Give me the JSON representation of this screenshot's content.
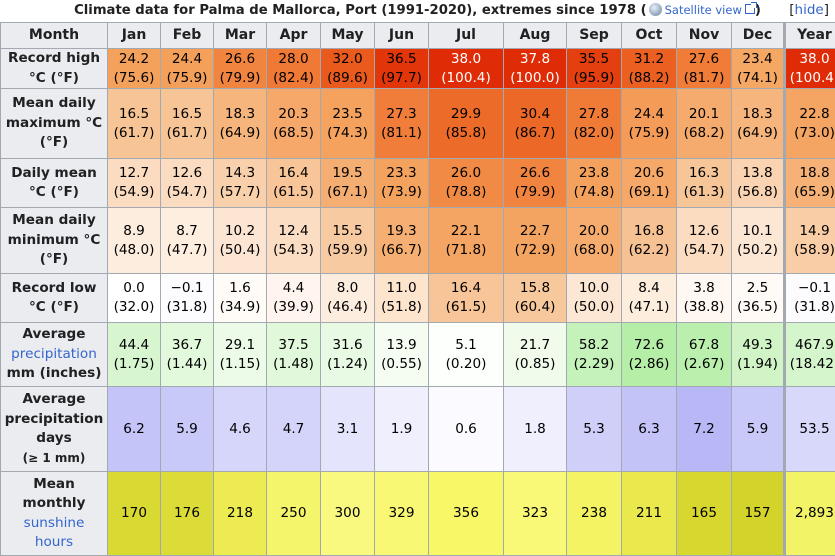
{
  "caption": {
    "text": "Climate data for Palma de Mallorca, Port (1991-2020), extremes since 1978",
    "satellite_link": "Satellite view",
    "hide_link": "hide"
  },
  "header": [
    "Month",
    "Jan",
    "Feb",
    "Mar",
    "Apr",
    "May",
    "Jun",
    "Jul",
    "Aug",
    "Sep",
    "Oct",
    "Nov",
    "Dec",
    "Year"
  ],
  "rows": [
    {
      "label": [
        "Record high",
        "°C (°F)"
      ],
      "cells": [
        {
          "a": "24.2",
          "b": "(75.6)",
          "bg": "#f4a15c",
          "fg": "#000000"
        },
        {
          "a": "24.4",
          "b": "(75.9)",
          "bg": "#f4a05b",
          "fg": "#000000"
        },
        {
          "a": "26.6",
          "b": "(79.9)",
          "bg": "#f1843f",
          "fg": "#000000"
        },
        {
          "a": "28.0",
          "b": "(82.4)",
          "bg": "#ef7935",
          "fg": "#000000"
        },
        {
          "a": "32.0",
          "b": "(89.6)",
          "bg": "#ea5a1c",
          "fg": "#000000"
        },
        {
          "a": "36.5",
          "b": "(97.7)",
          "bg": "#e2360a",
          "fg": "#000000"
        },
        {
          "a": "38.0",
          "b": "(100.4)",
          "bg": "#df2b06",
          "fg": "#ffffff"
        },
        {
          "a": "37.8",
          "b": "(100.0)",
          "bg": "#df2c06",
          "fg": "#ffffff"
        },
        {
          "a": "35.5",
          "b": "(95.9)",
          "bg": "#e43f0e",
          "fg": "#000000"
        },
        {
          "a": "31.2",
          "b": "(88.2)",
          "bg": "#eb6020",
          "fg": "#000000"
        },
        {
          "a": "27.6",
          "b": "(81.7)",
          "bg": "#f07c38",
          "fg": "#000000"
        },
        {
          "a": "23.4",
          "b": "(74.1)",
          "bg": "#f4a864",
          "fg": "#000000"
        },
        {
          "a": "38.0",
          "b": "(100.4)",
          "bg": "#df2b06",
          "fg": "#ffffff"
        }
      ]
    },
    {
      "label": [
        "Mean daily",
        "maximum °C",
        "(°F)"
      ],
      "cells": [
        {
          "a": "16.5",
          "b": "(61.7)",
          "bg": "#f7c496",
          "fg": "#000000"
        },
        {
          "a": "16.5",
          "b": "(61.7)",
          "bg": "#f7c496",
          "fg": "#000000"
        },
        {
          "a": "18.3",
          "b": "(64.9)",
          "bg": "#f6b57c",
          "fg": "#000000"
        },
        {
          "a": "20.3",
          "b": "(68.5)",
          "bg": "#f5a86a",
          "fg": "#000000"
        },
        {
          "a": "23.5",
          "b": "(74.3)",
          "bg": "#f4a25e",
          "fg": "#000000"
        },
        {
          "a": "27.3",
          "b": "(81.1)",
          "bg": "#f07e3a",
          "fg": "#000000"
        },
        {
          "a": "29.9",
          "b": "(85.8)",
          "bg": "#ed6b28",
          "fg": "#000000"
        },
        {
          "a": "30.4",
          "b": "(86.7)",
          "bg": "#ec6826",
          "fg": "#000000"
        },
        {
          "a": "27.8",
          "b": "(82.0)",
          "bg": "#ef7b37",
          "fg": "#000000"
        },
        {
          "a": "24.4",
          "b": "(75.9)",
          "bg": "#f39b57",
          "fg": "#000000"
        },
        {
          "a": "20.1",
          "b": "(68.2)",
          "bg": "#f5ab6d",
          "fg": "#000000"
        },
        {
          "a": "18.3",
          "b": "(64.9)",
          "bg": "#f6b57c",
          "fg": "#000000"
        },
        {
          "a": "22.8",
          "b": "(73.0)",
          "bg": "#f4a563",
          "fg": "#000000"
        }
      ]
    },
    {
      "label": [
        "Daily mean",
        "°C (°F)"
      ],
      "cells": [
        {
          "a": "12.7",
          "b": "(54.9)",
          "bg": "#fbdcc0",
          "fg": "#000000"
        },
        {
          "a": "12.6",
          "b": "(54.7)",
          "bg": "#fbdcc1",
          "fg": "#000000"
        },
        {
          "a": "14.3",
          "b": "(57.7)",
          "bg": "#f9d0ac",
          "fg": "#000000"
        },
        {
          "a": "16.4",
          "b": "(61.5)",
          "bg": "#f7c597",
          "fg": "#000000"
        },
        {
          "a": "19.5",
          "b": "(67.1)",
          "bg": "#f5ae71",
          "fg": "#000000"
        },
        {
          "a": "23.3",
          "b": "(73.9)",
          "bg": "#f4a35f",
          "fg": "#000000"
        },
        {
          "a": "26.0",
          "b": "(78.8)",
          "bg": "#f18a44",
          "fg": "#000000"
        },
        {
          "a": "26.6",
          "b": "(79.9)",
          "bg": "#f1843f",
          "fg": "#000000"
        },
        {
          "a": "23.8",
          "b": "(74.8)",
          "bg": "#f4a15d",
          "fg": "#000000"
        },
        {
          "a": "20.6",
          "b": "(69.1)",
          "bg": "#f5a868",
          "fg": "#000000"
        },
        {
          "a": "16.3",
          "b": "(61.3)",
          "bg": "#f7c698",
          "fg": "#000000"
        },
        {
          "a": "13.8",
          "b": "(56.8)",
          "bg": "#fad3b2",
          "fg": "#000000"
        },
        {
          "a": "18.8",
          "b": "(65.9)",
          "bg": "#f6b276",
          "fg": "#000000"
        }
      ]
    },
    {
      "label": [
        "Mean daily",
        "minimum °C",
        "(°F)"
      ],
      "cells": [
        {
          "a": "8.9",
          "b": "(48.0)",
          "bg": "#fdeddf",
          "fg": "#000000"
        },
        {
          "a": "8.7",
          "b": "(47.7)",
          "bg": "#fdeee0",
          "fg": "#000000"
        },
        {
          "a": "10.2",
          "b": "(50.4)",
          "bg": "#fce6d3",
          "fg": "#000000"
        },
        {
          "a": "12.4",
          "b": "(54.3)",
          "bg": "#fbddc3",
          "fg": "#000000"
        },
        {
          "a": "15.5",
          "b": "(59.9)",
          "bg": "#f8caa1",
          "fg": "#000000"
        },
        {
          "a": "19.3",
          "b": "(66.7)",
          "bg": "#f6af73",
          "fg": "#000000"
        },
        {
          "a": "22.1",
          "b": "(71.8)",
          "bg": "#f4a463",
          "fg": "#000000"
        },
        {
          "a": "22.7",
          "b": "(72.9)",
          "bg": "#f4a461",
          "fg": "#000000"
        },
        {
          "a": "20.0",
          "b": "(68.0)",
          "bg": "#f5ac6e",
          "fg": "#000000"
        },
        {
          "a": "16.8",
          "b": "(62.2)",
          "bg": "#f7c293",
          "fg": "#000000"
        },
        {
          "a": "12.6",
          "b": "(54.7)",
          "bg": "#fbdcc1",
          "fg": "#000000"
        },
        {
          "a": "10.1",
          "b": "(50.2)",
          "bg": "#fce6d4",
          "fg": "#000000"
        },
        {
          "a": "14.9",
          "b": "(58.9)",
          "bg": "#f9cda6",
          "fg": "#000000"
        }
      ]
    },
    {
      "label": [
        "Record low",
        "°C (°F)"
      ],
      "cells": [
        {
          "a": "0.0",
          "b": "(32.0)",
          "bg": "#ffffff",
          "fg": "#000000"
        },
        {
          "a": "−0.1",
          "b": "(31.8)",
          "bg": "#fcfcff",
          "fg": "#000000"
        },
        {
          "a": "1.6",
          "b": "(34.9)",
          "bg": "#fffcf8",
          "fg": "#000000"
        },
        {
          "a": "4.4",
          "b": "(39.9)",
          "bg": "#fff5ee",
          "fg": "#000000"
        },
        {
          "a": "8.0",
          "b": "(46.4)",
          "bg": "#fdeddf",
          "fg": "#000000"
        },
        {
          "a": "11.0",
          "b": "(51.8)",
          "bg": "#fce4cd",
          "fg": "#000000"
        },
        {
          "a": "16.4",
          "b": "(61.5)",
          "bg": "#f7c597",
          "fg": "#000000"
        },
        {
          "a": "15.8",
          "b": "(60.4)",
          "bg": "#f8c89d",
          "fg": "#000000"
        },
        {
          "a": "10.0",
          "b": "(50.0)",
          "bg": "#fce7d4",
          "fg": "#000000"
        },
        {
          "a": "8.4",
          "b": "(47.1)",
          "bg": "#fdeddd",
          "fg": "#000000"
        },
        {
          "a": "3.8",
          "b": "(38.8)",
          "bg": "#fff7f1",
          "fg": "#000000"
        },
        {
          "a": "2.5",
          "b": "(36.5)",
          "bg": "#fffaf5",
          "fg": "#000000"
        },
        {
          "a": "−0.1",
          "b": "(31.8)",
          "bg": "#fcfcff",
          "fg": "#000000"
        }
      ]
    },
    {
      "label": [
        "Average",
        "precipitation",
        "mm (inches)"
      ],
      "link_line": 1,
      "cells": [
        {
          "a": "44.4",
          "b": "(1.75)",
          "bg": "#d7f6cf",
          "fg": "#000000"
        },
        {
          "a": "36.7",
          "b": "(1.44)",
          "bg": "#e2f9dc",
          "fg": "#000000"
        },
        {
          "a": "29.1",
          "b": "(1.15)",
          "bg": "#ebfbe7",
          "fg": "#000000"
        },
        {
          "a": "37.5",
          "b": "(1.48)",
          "bg": "#e1f8db",
          "fg": "#000000"
        },
        {
          "a": "31.6",
          "b": "(1.24)",
          "bg": "#e8fae4",
          "fg": "#000000"
        },
        {
          "a": "13.9",
          "b": "(0.55)",
          "bg": "#f5fdf3",
          "fg": "#000000"
        },
        {
          "a": "5.1",
          "b": "(0.20)",
          "bg": "#fdfffd",
          "fg": "#000000"
        },
        {
          "a": "21.7",
          "b": "(0.85)",
          "bg": "#f0fbec",
          "fg": "#000000"
        },
        {
          "a": "58.2",
          "b": "(2.29)",
          "bg": "#c5f2ba",
          "fg": "#000000"
        },
        {
          "a": "72.6",
          "b": "(2.86)",
          "bg": "#b5eea7",
          "fg": "#000000"
        },
        {
          "a": "67.8",
          "b": "(2.67)",
          "bg": "#baefad",
          "fg": "#000000"
        },
        {
          "a": "49.3",
          "b": "(1.94)",
          "bg": "#d0f4c6",
          "fg": "#000000"
        },
        {
          "a": "467.9",
          "b": "(18.42)",
          "bg": "#d5f5cc",
          "fg": "#000000"
        }
      ]
    },
    {
      "label": [
        "Average",
        "precipitation",
        "days",
        "(≥ 1 mm)"
      ],
      "small_last": true,
      "cells": [
        {
          "a": "6.2",
          "bg": "#c4c4f8",
          "fg": "#000000"
        },
        {
          "a": "5.9",
          "bg": "#c8c8f9",
          "fg": "#000000"
        },
        {
          "a": "4.6",
          "bg": "#d6d6fa",
          "fg": "#000000"
        },
        {
          "a": "4.7",
          "bg": "#d4d4fa",
          "fg": "#000000"
        },
        {
          "a": "3.1",
          "bg": "#e4e4fc",
          "fg": "#000000"
        },
        {
          "a": "1.9",
          "bg": "#efeffd",
          "fg": "#000000"
        },
        {
          "a": "0.6",
          "bg": "#fbfbff",
          "fg": "#000000"
        },
        {
          "a": "1.8",
          "bg": "#efeffd",
          "fg": "#000000"
        },
        {
          "a": "5.3",
          "bg": "#cfcff9",
          "fg": "#000000"
        },
        {
          "a": "6.3",
          "bg": "#c3c3f7",
          "fg": "#000000"
        },
        {
          "a": "7.2",
          "bg": "#b8b8f6",
          "fg": "#000000"
        },
        {
          "a": "5.9",
          "bg": "#c8c8f9",
          "fg": "#000000"
        },
        {
          "a": "53.5",
          "bg": "#d8d8fb",
          "fg": "#000000"
        }
      ]
    },
    {
      "label": [
        "Mean",
        "monthly",
        "sunshine",
        "hours"
      ],
      "link_lines": [
        2,
        3
      ],
      "cells": [
        {
          "a": "170",
          "bg": "#d9d933",
          "fg": "#000000"
        },
        {
          "a": "176",
          "bg": "#dcdc38",
          "fg": "#000000"
        },
        {
          "a": "218",
          "bg": "#ecec52",
          "fg": "#000000"
        },
        {
          "a": "250",
          "bg": "#f5f56c",
          "fg": "#000000"
        },
        {
          "a": "300",
          "bg": "#f9f980",
          "fg": "#000000"
        },
        {
          "a": "329",
          "bg": "#f8f874",
          "fg": "#000000"
        },
        {
          "a": "356",
          "bg": "#f7f767",
          "fg": "#000000"
        },
        {
          "a": "323",
          "bg": "#f9f977",
          "fg": "#000000"
        },
        {
          "a": "238",
          "bg": "#f3f364",
          "fg": "#000000"
        },
        {
          "a": "211",
          "bg": "#e9e94d",
          "fg": "#000000"
        },
        {
          "a": "165",
          "bg": "#d7d730",
          "fg": "#000000"
        },
        {
          "a": "157",
          "bg": "#d3d32b",
          "fg": "#000000"
        },
        {
          "a": "2,893",
          "bg": "#f3f367",
          "fg": "#000000"
        }
      ]
    }
  ]
}
